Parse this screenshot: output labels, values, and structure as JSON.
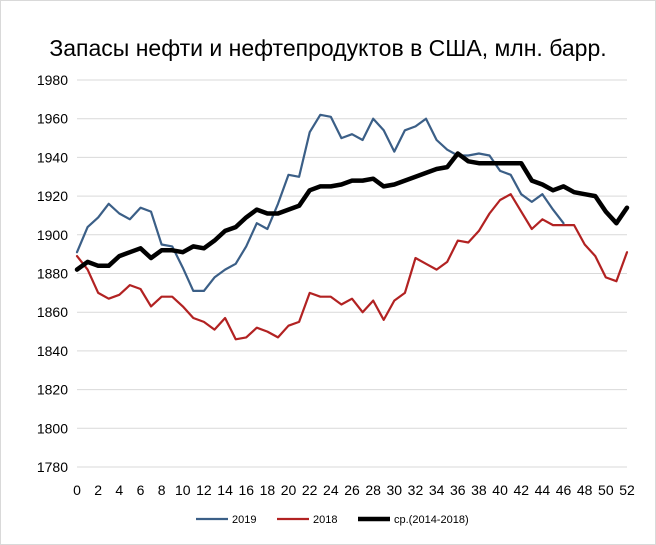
{
  "chart_data": {
    "type": "line",
    "title": "Запасы нефти и нефтепродуктов в США, млн. барр.",
    "xlabel": "",
    "ylabel": "",
    "xlim": [
      0,
      52
    ],
    "ylim": [
      1780,
      1980
    ],
    "y_ticks": [
      1780,
      1800,
      1820,
      1840,
      1860,
      1880,
      1900,
      1920,
      1940,
      1960,
      1980
    ],
    "x_ticks": [
      0,
      2,
      4,
      6,
      8,
      10,
      12,
      14,
      16,
      18,
      20,
      22,
      24,
      26,
      28,
      30,
      32,
      34,
      36,
      38,
      40,
      42,
      44,
      46,
      48,
      50,
      52
    ],
    "grid": "horizontal",
    "legend": "bottom",
    "series": [
      {
        "name": "2019",
        "color": "#3b5f87",
        "x": [
          0,
          1,
          2,
          3,
          4,
          5,
          6,
          7,
          8,
          9,
          10,
          11,
          12,
          13,
          14,
          15,
          16,
          17,
          18,
          19,
          20,
          21,
          22,
          23,
          24,
          25,
          26,
          27,
          28,
          29,
          30,
          31,
          32,
          33,
          34,
          35,
          36,
          37,
          38,
          39,
          40,
          41,
          42,
          43,
          44,
          45,
          46
        ],
        "values": [
          1891,
          1904,
          1909,
          1916,
          1911,
          1908,
          1914,
          1912,
          1895,
          1894,
          1883,
          1871,
          1871,
          1878,
          1882,
          1885,
          1894,
          1906,
          1903,
          1916,
          1931,
          1930,
          1953,
          1962,
          1961,
          1950,
          1952,
          1949,
          1960,
          1954,
          1943,
          1954,
          1956,
          1960,
          1949,
          1944,
          1941,
          1941,
          1942,
          1941,
          1933,
          1931,
          1921,
          1917,
          1921,
          1913,
          1906
        ]
      },
      {
        "name": "2018",
        "color": "#b22222",
        "x": [
          0,
          1,
          2,
          3,
          4,
          5,
          6,
          7,
          8,
          9,
          10,
          11,
          12,
          13,
          14,
          15,
          16,
          17,
          18,
          19,
          20,
          21,
          22,
          23,
          24,
          25,
          26,
          27,
          28,
          29,
          30,
          31,
          32,
          33,
          34,
          35,
          36,
          37,
          38,
          39,
          40,
          41,
          42,
          43,
          44,
          45,
          46,
          47,
          48,
          49,
          50,
          51,
          52
        ],
        "values": [
          1889,
          1882,
          1870,
          1867,
          1869,
          1874,
          1872,
          1863,
          1868,
          1868,
          1863,
          1857,
          1855,
          1851,
          1857,
          1846,
          1847,
          1852,
          1850,
          1847,
          1853,
          1855,
          1870,
          1868,
          1868,
          1864,
          1867,
          1860,
          1866,
          1856,
          1866,
          1870,
          1888,
          1885,
          1882,
          1886,
          1897,
          1896,
          1902,
          1911,
          1918,
          1921,
          1912,
          1903,
          1908,
          1905,
          1905,
          1905,
          1895,
          1889,
          1878,
          1876,
          1891
        ]
      },
      {
        "name": "ср.(2014-2018)",
        "color": "#000000",
        "x": [
          0,
          1,
          2,
          3,
          4,
          5,
          6,
          7,
          8,
          9,
          10,
          11,
          12,
          13,
          14,
          15,
          16,
          17,
          18,
          19,
          20,
          21,
          22,
          23,
          24,
          25,
          26,
          27,
          28,
          29,
          30,
          31,
          32,
          33,
          34,
          35,
          36,
          37,
          38,
          39,
          40,
          41,
          42,
          43,
          44,
          45,
          46,
          47,
          48,
          49,
          50,
          51,
          52
        ],
        "values": [
          1882,
          1886,
          1884,
          1884,
          1889,
          1891,
          1893,
          1888,
          1892,
          1892,
          1891,
          1894,
          1893,
          1897,
          1902,
          1904,
          1909,
          1913,
          1911,
          1911,
          1913,
          1915,
          1923,
          1925,
          1925,
          1926,
          1928,
          1928,
          1929,
          1925,
          1926,
          1928,
          1930,
          1932,
          1934,
          1935,
          1942,
          1938,
          1937,
          1937,
          1937,
          1937,
          1937,
          1928,
          1926,
          1923,
          1925,
          1922,
          1921,
          1920,
          1912,
          1906,
          1914
        ]
      }
    ]
  }
}
